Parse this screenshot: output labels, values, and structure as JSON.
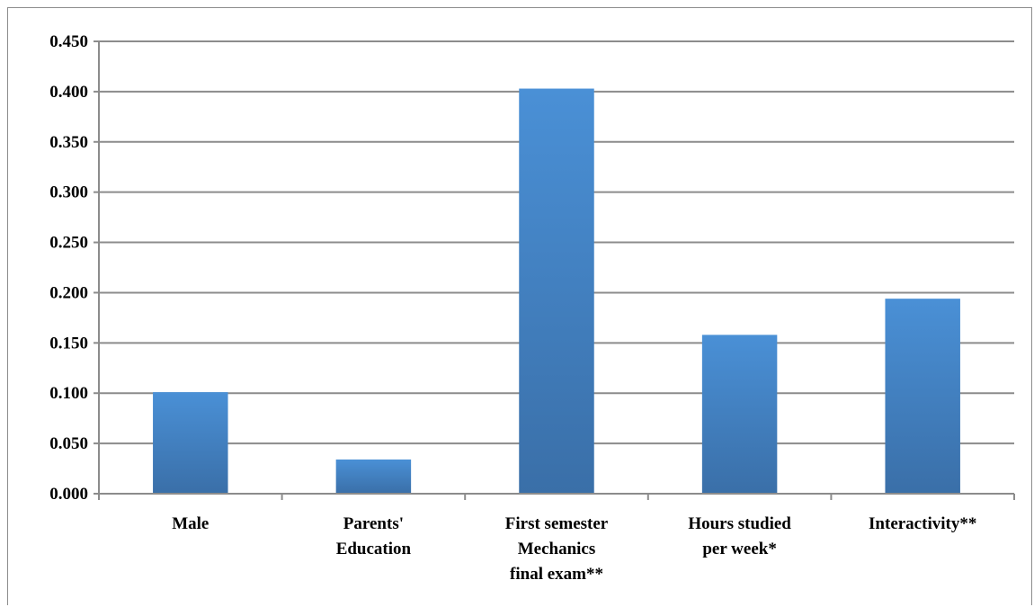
{
  "chart_data": {
    "type": "bar",
    "categories": [
      [
        "Male"
      ],
      [
        "Parents'",
        "Education"
      ],
      [
        "First semester",
        "Mechanics",
        "final exam**"
      ],
      [
        "Hours studied",
        "per week*"
      ],
      [
        "Interactivity**"
      ]
    ],
    "values": [
      0.101,
      0.034,
      0.403,
      0.158,
      0.194
    ],
    "yticks": [
      "0.000",
      "0.050",
      "0.100",
      "0.150",
      "0.200",
      "0.250",
      "0.300",
      "0.350",
      "0.400",
      "0.450"
    ],
    "ylim": [
      0,
      0.45
    ],
    "title": "",
    "xlabel": "",
    "ylabel": "",
    "grid": true,
    "legend": "none",
    "colors": {
      "bar_top": "#4a90d6",
      "bar_bottom": "#3a6fa8",
      "grid": "#8c8c8c",
      "axis": "#8c8c8c"
    }
  }
}
